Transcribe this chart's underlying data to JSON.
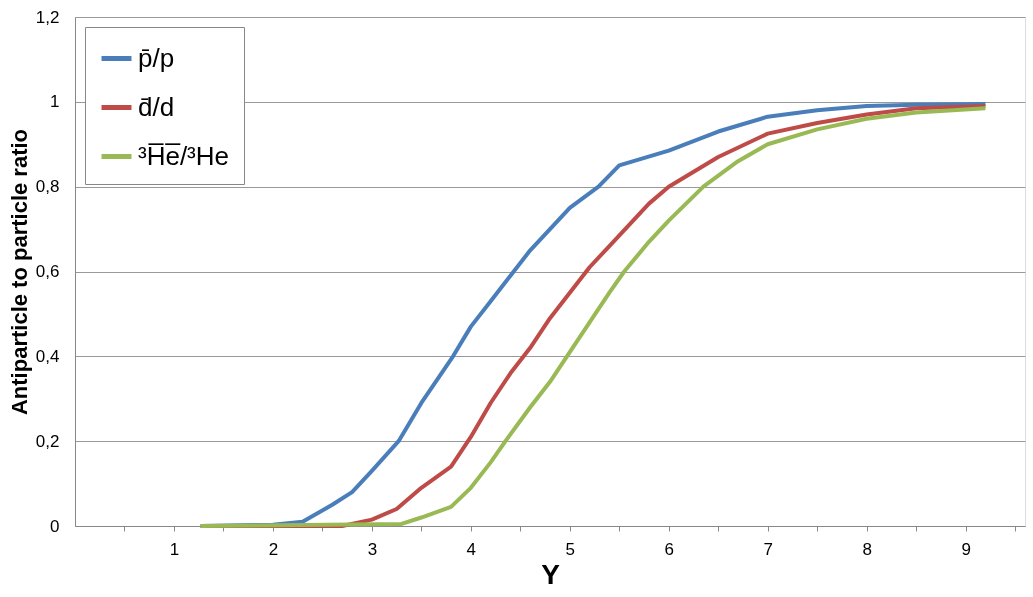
{
  "chart_data": {
    "type": "line",
    "xlabel": "Y",
    "ylabel": "Antiparticle to particle ratio",
    "xlim": [
      0,
      9.6
    ],
    "xticks": [
      {
        "value": 0.5,
        "label": null
      },
      1,
      {
        "value": 1.5,
        "label": null
      },
      2,
      {
        "value": 2.5,
        "label": null
      },
      3,
      {
        "value": 3.5,
        "label": null
      },
      4,
      {
        "value": 4.5,
        "label": null
      },
      5,
      {
        "value": 5.5,
        "label": null
      },
      6,
      {
        "value": 6.5,
        "label": null
      },
      7,
      {
        "value": 7.5,
        "label": null
      },
      8,
      {
        "value": 8.5,
        "label": null
      },
      9,
      {
        "value": 9.5,
        "label": null
      }
    ],
    "ylim": [
      0,
      1.2
    ],
    "yticks": [
      0,
      {
        "value": 0.2,
        "label": "0,2"
      },
      {
        "value": 0.4,
        "label": "0,4"
      },
      {
        "value": 0.6,
        "label": "0,6"
      },
      {
        "value": 0.8,
        "label": "0,8"
      },
      1,
      {
        "value": 1.2,
        "label": "1,2"
      }
    ],
    "grid": "y",
    "legend": "top left",
    "marker": "none",
    "line_style": "solid",
    "series": [
      {
        "name": "p̄/p",
        "color": "#4a7ebb",
        "x": [
          1.27,
          2.0,
          2.3,
          2.6,
          2.8,
          3.0,
          3.27,
          3.5,
          3.82,
          4.0,
          4.2,
          4.4,
          4.6,
          4.8,
          5.0,
          5.29,
          5.5,
          6.0,
          6.5,
          7.0,
          7.5,
          8.0,
          8.5,
          9.2
        ],
        "values": [
          0,
          0.003,
          0.01,
          0.05,
          0.08,
          0.13,
          0.2,
          0.29,
          0.4,
          0.47,
          0.53,
          0.59,
          0.65,
          0.7,
          0.75,
          0.8,
          0.85,
          0.885,
          0.93,
          0.965,
          0.98,
          0.99,
          0.993,
          0.995
        ]
      },
      {
        "name": "d̄/d",
        "color": "#be4b48",
        "x": [
          1.27,
          2.7,
          3.0,
          3.25,
          3.5,
          3.8,
          4.0,
          4.2,
          4.4,
          4.6,
          4.8,
          5.0,
          5.2,
          5.4,
          5.6,
          5.8,
          6.0,
          6.5,
          7.0,
          7.5,
          8.0,
          8.5,
          9.2
        ],
        "values": [
          0,
          0,
          0.015,
          0.04,
          0.09,
          0.14,
          0.21,
          0.29,
          0.36,
          0.42,
          0.49,
          0.55,
          0.61,
          0.66,
          0.71,
          0.76,
          0.8,
          0.87,
          0.925,
          0.95,
          0.97,
          0.985,
          0.99
        ]
      },
      {
        "name": "³H̅e̅/³He",
        "color": "#98b954",
        "x": [
          1.27,
          3.3,
          3.5,
          3.8,
          4.0,
          4.2,
          4.35,
          4.6,
          4.8,
          5.0,
          5.2,
          5.4,
          5.55,
          5.8,
          6.0,
          6.35,
          6.7,
          7.0,
          7.5,
          8.0,
          8.5,
          9.2
        ],
        "values": [
          0,
          0.005,
          0.02,
          0.045,
          0.09,
          0.15,
          0.2,
          0.28,
          0.34,
          0.41,
          0.48,
          0.55,
          0.6,
          0.67,
          0.72,
          0.8,
          0.86,
          0.9,
          0.935,
          0.96,
          0.975,
          0.985
        ]
      }
    ]
  }
}
